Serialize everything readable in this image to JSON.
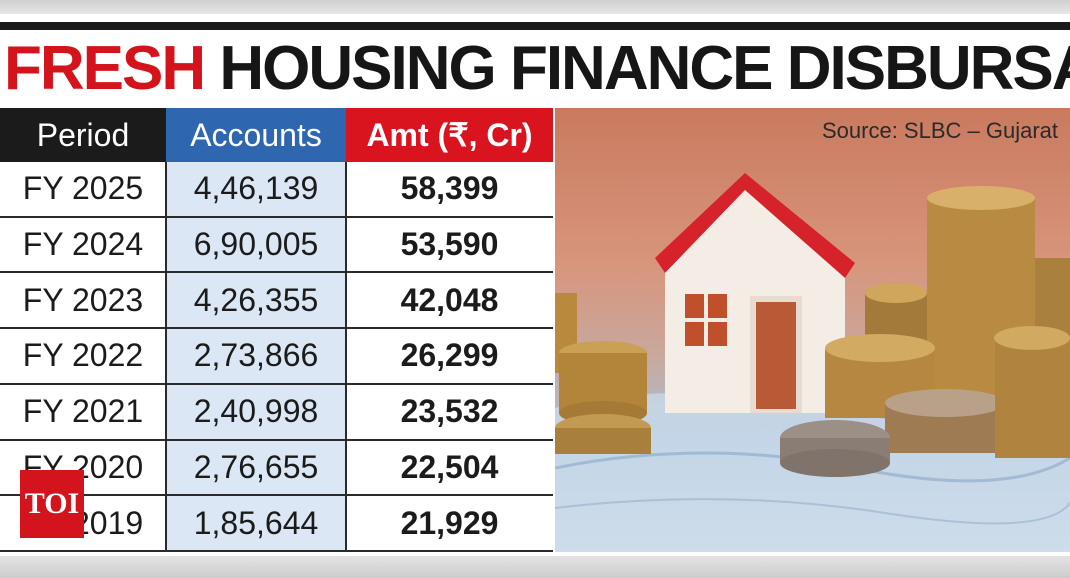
{
  "title": {
    "word1": "FRESH",
    "word2": "HOUSING FINANCE DISBURSALS"
  },
  "source": "Source: SLBC – Gujarat",
  "watermark": "TOI",
  "colors": {
    "title_accent": "#d4141c",
    "period_header": "#1b1b1b",
    "accounts_header": "#2e66b0",
    "amount_header": "#d9141e",
    "accounts_column_bg": "#dbe7f4"
  },
  "chart_data": {
    "type": "table",
    "title": "FRESH HOUSING FINANCE DISBURSALS",
    "columns": [
      "Period",
      "Accounts",
      "Amt (₹, Cr)"
    ],
    "rows": [
      {
        "period": "FY 2025",
        "accounts": "4,46,139",
        "amount": "58,399"
      },
      {
        "period": "FY 2024",
        "accounts": "6,90,005",
        "amount": "53,590"
      },
      {
        "period": "FY 2023",
        "accounts": "4,26,355",
        "amount": "42,048"
      },
      {
        "period": "FY 2022",
        "accounts": "2,73,866",
        "amount": "26,299"
      },
      {
        "period": "FY 2021",
        "accounts": "2,40,998",
        "amount": "23,532"
      },
      {
        "period": "FY 2020",
        "accounts": "2,76,655",
        "amount": "22,504"
      },
      {
        "period": "FY 2019",
        "accounts": "1,85,644",
        "amount": "21,929"
      }
    ]
  }
}
